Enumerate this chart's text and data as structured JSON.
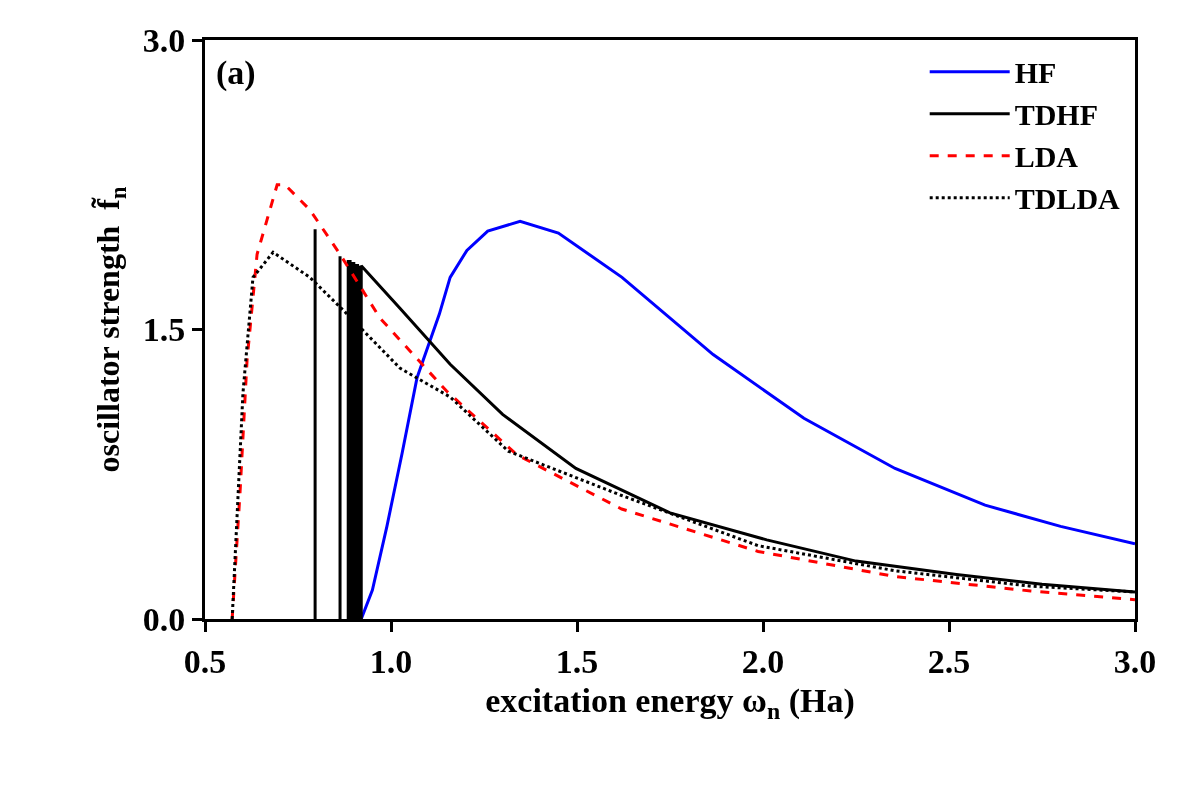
{
  "chart_data": {
    "type": "line",
    "xlabel": "excitation energy ω$_{n}$ (Ha)",
    "ylabel": "oscillator strength  f̃$_{n}$",
    "annotations": [
      "(a)"
    ],
    "xlim": [
      0.5,
      3.0
    ],
    "xticks": [
      {
        "value": 0.5,
        "label": "0.5"
      },
      {
        "value": 1.0,
        "label": "1.0"
      },
      {
        "value": 1.5,
        "label": "1.5"
      },
      {
        "value": 2.0,
        "label": "2.0"
      },
      {
        "value": 2.5,
        "label": "2.5"
      },
      {
        "value": 3.0,
        "label": "3.0"
      }
    ],
    "ylim": [
      0.0,
      3.0
    ],
    "yticks": [
      {
        "value": 0,
        "label": "0.0"
      },
      {
        "value": 1.5,
        "label": "1.5"
      },
      {
        "value": 3.0,
        "label": "3.0"
      }
    ],
    "grid": false,
    "legend": "top right",
    "marker": "none",
    "series": [
      {
        "name": "HF",
        "color": "#0000ff",
        "line_style": "solid",
        "x": [
          0.92,
          0.95,
          0.989,
          1.03,
          1.07,
          1.13,
          1.159,
          1.204,
          1.26,
          1.347,
          1.45,
          1.621,
          1.866,
          2.11,
          2.355,
          2.597,
          2.8,
          3.0
        ],
        "values": [
          0.0,
          0.15,
          0.48,
          0.86,
          1.25,
          1.58,
          1.77,
          1.91,
          2.01,
          2.06,
          2.0,
          1.77,
          1.37,
          1.04,
          0.78,
          0.59,
          0.48,
          0.39
        ]
      },
      {
        "name": "TDHF",
        "color": "#000000",
        "line_style": "solid",
        "x": [
          0.796,
          0.796,
          null,
          0.863,
          0.863,
          null,
          0.885,
          0.885,
          null,
          0.89,
          0.89,
          null,
          0.895,
          0.895,
          null,
          0.9,
          0.9,
          null,
          0.905,
          0.905,
          null,
          0.91,
          0.91,
          null,
          0.915,
          0.915,
          null,
          0.92,
          0.92,
          0.925,
          1.024,
          1.159,
          1.3,
          1.497,
          1.75,
          2.01,
          2.25,
          2.52,
          2.75,
          3.0
        ],
        "values": [
          0,
          2.02,
          null,
          0,
          1.88,
          null,
          0,
          1.86,
          null,
          0,
          1.86,
          null,
          0,
          1.85,
          null,
          0,
          1.85,
          null,
          0,
          1.84,
          null,
          0,
          1.84,
          null,
          0,
          1.83,
          null,
          0,
          1.83,
          1.82,
          1.61,
          1.32,
          1.06,
          0.78,
          0.55,
          0.41,
          0.3,
          0.23,
          0.18,
          0.14
        ]
      },
      {
        "name": "LDA",
        "color": "#ff0000",
        "line_style": "dashed",
        "x": [
          0.573,
          0.594,
          0.613,
          0.64,
          0.694,
          0.715,
          0.782,
          0.863,
          0.97,
          1.15,
          1.339,
          1.62,
          1.987,
          2.355,
          2.72,
          3.0
        ],
        "values": [
          0.0,
          0.65,
          1.34,
          1.89,
          2.25,
          2.25,
          2.12,
          1.89,
          1.56,
          1.18,
          0.85,
          0.57,
          0.35,
          0.22,
          0.145,
          0.1
        ]
      },
      {
        "name": "TDLDA",
        "color": "#000000",
        "line_style": "dotted",
        "x": [
          0.573,
          0.602,
          0.629,
          0.683,
          0.782,
          0.882,
          1.024,
          1.159,
          1.315,
          1.62,
          1.987,
          2.355,
          2.72,
          3.0
        ],
        "values": [
          0.0,
          1.17,
          1.77,
          1.9,
          1.77,
          1.58,
          1.3,
          1.15,
          0.87,
          0.64,
          0.38,
          0.25,
          0.17,
          0.14
        ]
      }
    ]
  }
}
